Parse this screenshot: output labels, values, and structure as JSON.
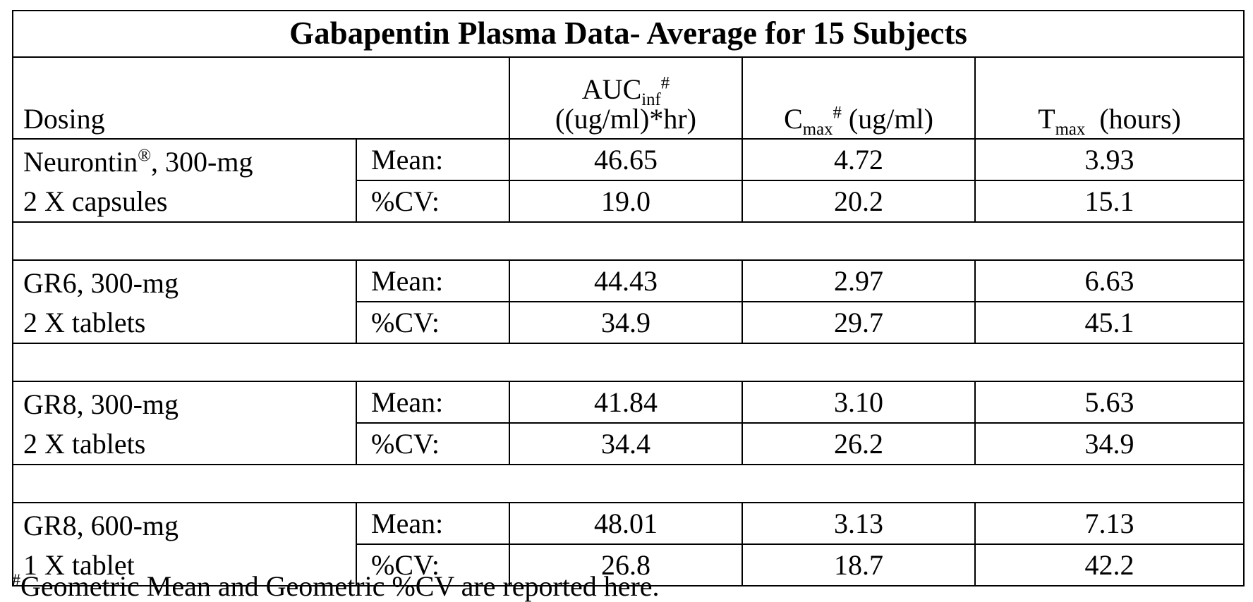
{
  "title": "Gabapentin Plasma Data- Average for 15 Subjects",
  "headers": {
    "dosing": "Dosing",
    "auc_main": "AUC",
    "auc_sub": "inf",
    "auc_mark": "#",
    "auc_unit": "((ug/ml)*hr)",
    "cmax_main": "C",
    "cmax_sub": "max",
    "cmax_mark": "#",
    "cmax_unit": "(ug/ml)",
    "tmax_main": "T",
    "tmax_sub": "max",
    "tmax_unit": "(hours)"
  },
  "groups": [
    {
      "line1": "Neurontin",
      "reg": "®",
      "line1_rest": ", 300-mg",
      "line2": "2  X capsules",
      "mean_label": "Mean:",
      "cv_label": "%CV:",
      "mean": [
        "46.65",
        "4.72",
        "3.93"
      ],
      "cv": [
        "19.0",
        "20.2",
        "15.1"
      ]
    },
    {
      "line1": "GR6, 300-mg",
      "line2": "2 X tablets",
      "mean_label": "Mean:",
      "cv_label": "%CV:",
      "mean": [
        "44.43",
        "2.97",
        "6.63"
      ],
      "cv": [
        "34.9",
        "29.7",
        "45.1"
      ]
    },
    {
      "line1": "GR8, 300-mg",
      "line2": "2 X tablets",
      "mean_label": "Mean:",
      "cv_label": "%CV:",
      "mean": [
        "41.84",
        "3.10",
        "5.63"
      ],
      "cv": [
        "34.4",
        "26.2",
        "34.9"
      ]
    },
    {
      "line1": "GR8, 600-mg",
      "line2": "1 X tablet",
      "mean_label": "Mean:",
      "cv_label": "%CV:",
      "mean": [
        "48.01",
        "3.13",
        "7.13"
      ],
      "cv": [
        "26.8",
        "18.7",
        "42.2"
      ]
    }
  ],
  "footnote": {
    "mark": "#",
    "text": "Geometric Mean and Geometric %CV are reported here."
  }
}
